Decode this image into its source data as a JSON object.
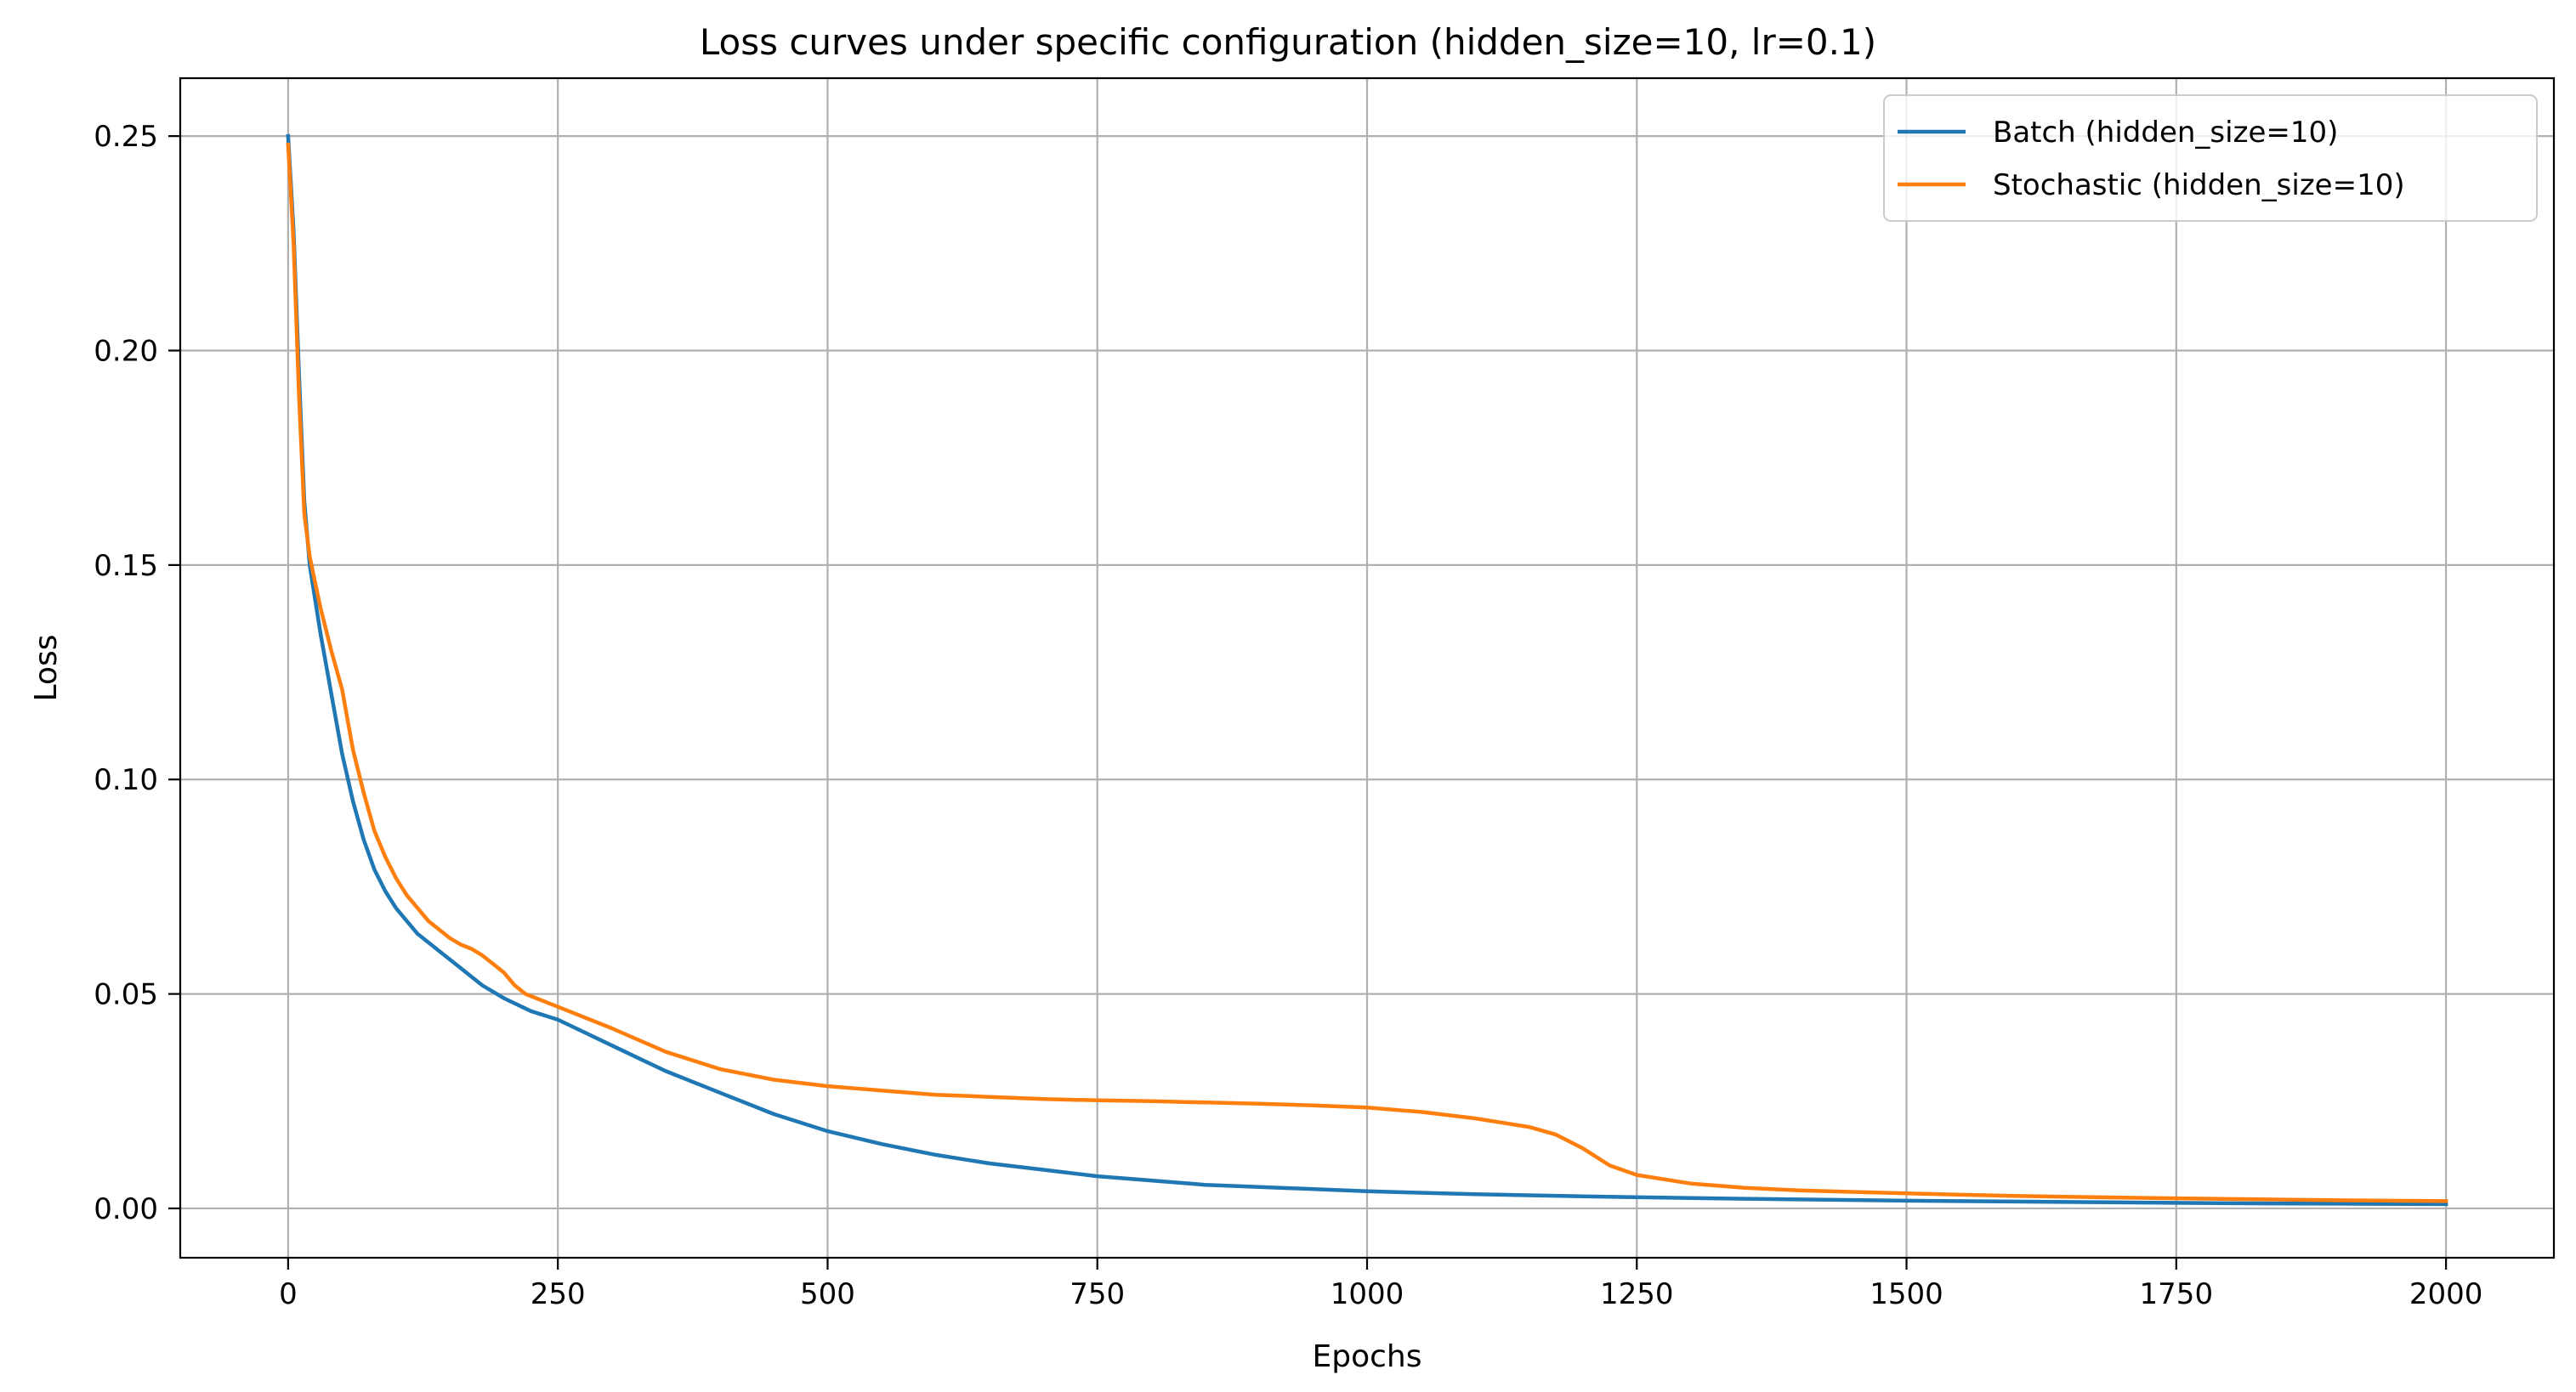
{
  "chart_data": {
    "type": "line",
    "title": "Loss curves under specific configuration (hidden_size=10, lr=0.1)",
    "xlabel": "Epochs",
    "ylabel": "Loss",
    "xlim": [
      -100,
      2100
    ],
    "ylim": [
      -0.0115,
      0.2635
    ],
    "xticks": [
      0,
      250,
      500,
      750,
      1000,
      1250,
      1500,
      1750,
      2000
    ],
    "yticks": [
      0.0,
      0.05,
      0.1,
      0.15,
      0.2,
      0.25
    ],
    "xtick_labels": [
      "0",
      "250",
      "500",
      "750",
      "1000",
      "1250",
      "1500",
      "1750",
      "2000"
    ],
    "ytick_labels": [
      "0.00",
      "0.05",
      "0.10",
      "0.15",
      "0.20",
      "0.25"
    ],
    "grid": true,
    "legend_position": "top-right",
    "series": [
      {
        "name": "Batch (hidden_size=10)",
        "color": "#1f77b4",
        "x": [
          0,
          5,
          10,
          15,
          20,
          25,
          30,
          40,
          50,
          60,
          70,
          80,
          90,
          100,
          110,
          120,
          130,
          140,
          160,
          180,
          200,
          225,
          250,
          275,
          300,
          350,
          400,
          450,
          500,
          550,
          600,
          650,
          700,
          750,
          800,
          850,
          900,
          1000,
          1100,
          1200,
          1300,
          1400,
          1500,
          1600,
          1700,
          1800,
          1900,
          2000
        ],
        "y": [
          0.25,
          0.228,
          0.195,
          0.165,
          0.15,
          0.142,
          0.134,
          0.12,
          0.106,
          0.095,
          0.086,
          0.079,
          0.074,
          0.07,
          0.067,
          0.064,
          0.062,
          0.06,
          0.056,
          0.052,
          0.049,
          0.046,
          0.044,
          0.041,
          0.038,
          0.032,
          0.027,
          0.022,
          0.018,
          0.015,
          0.0125,
          0.0105,
          0.009,
          0.0075,
          0.0065,
          0.0055,
          0.005,
          0.004,
          0.0033,
          0.0028,
          0.0024,
          0.0021,
          0.0018,
          0.0016,
          0.0014,
          0.0012,
          0.0011,
          0.001
        ]
      },
      {
        "name": "Stochastic (hidden_size=10)",
        "color": "#ff7f0e",
        "x": [
          0,
          5,
          10,
          15,
          20,
          25,
          30,
          40,
          50,
          60,
          70,
          80,
          90,
          100,
          110,
          120,
          130,
          140,
          150,
          160,
          170,
          180,
          190,
          200,
          210,
          220,
          250,
          300,
          350,
          400,
          450,
          500,
          550,
          600,
          650,
          700,
          750,
          800,
          850,
          900,
          950,
          1000,
          1050,
          1100,
          1150,
          1175,
          1200,
          1225,
          1250,
          1300,
          1350,
          1400,
          1500,
          1600,
          1700,
          1800,
          1900,
          2000
        ],
        "y": [
          0.248,
          0.225,
          0.19,
          0.162,
          0.152,
          0.146,
          0.14,
          0.13,
          0.121,
          0.107,
          0.097,
          0.088,
          0.082,
          0.077,
          0.073,
          0.07,
          0.067,
          0.065,
          0.063,
          0.0615,
          0.0605,
          0.059,
          0.057,
          0.055,
          0.052,
          0.05,
          0.047,
          0.042,
          0.0365,
          0.0325,
          0.03,
          0.0285,
          0.0275,
          0.0265,
          0.026,
          0.0255,
          0.0252,
          0.025,
          0.0247,
          0.0244,
          0.024,
          0.0235,
          0.0225,
          0.021,
          0.019,
          0.0172,
          0.014,
          0.01,
          0.0078,
          0.0058,
          0.0048,
          0.0042,
          0.0035,
          0.0029,
          0.0025,
          0.0022,
          0.0019,
          0.0017
        ]
      }
    ]
  }
}
